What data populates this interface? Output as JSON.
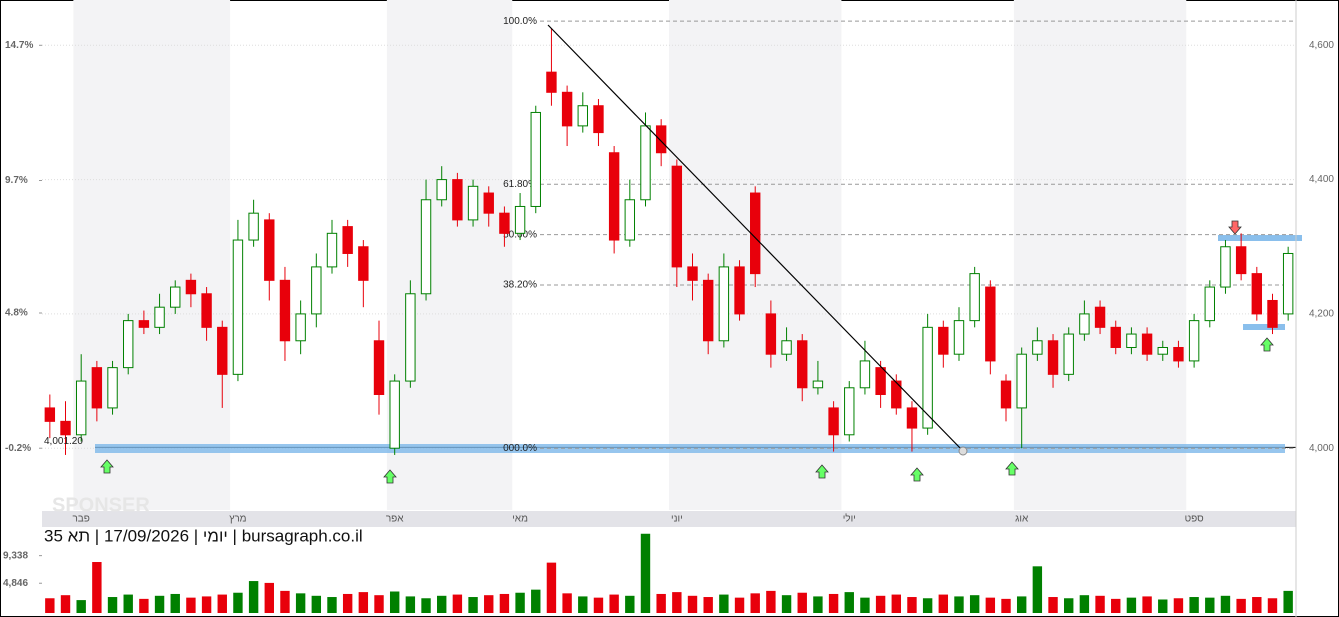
{
  "chart_data": {
    "type": "candlestick",
    "title": "יומי | 17/09/2026 | תא 35 | bursagraph.co.il",
    "watermark": "SPONSER",
    "up_color": "#008000",
    "down_color": "#e8000b",
    "categories": [
      null,
      null,
      "פבר",
      null,
      null,
      null,
      null,
      null,
      null,
      null,
      null,
      null,
      "מרץ",
      null,
      null,
      null,
      null,
      null,
      null,
      null,
      null,
      null,
      "אפר",
      null,
      null,
      null,
      null,
      null,
      null,
      null,
      "מאי",
      null,
      null,
      null,
      null,
      null,
      null,
      null,
      null,
      null,
      "יוני",
      null,
      null,
      null,
      null,
      null,
      null,
      null,
      null,
      null,
      null,
      "יולי",
      null,
      null,
      null,
      null,
      null,
      null,
      null,
      null,
      null,
      null,
      "אוג",
      null,
      null,
      null,
      null,
      null,
      null,
      null,
      null,
      null,
      null,
      "ספט",
      null,
      null,
      null,
      null,
      null,
      null
    ],
    "ohlc": [
      [
        4060,
        4080,
        4015,
        4040
      ],
      [
        4040,
        4070,
        3990,
        4020
      ],
      [
        4020,
        4140,
        4010,
        4100
      ],
      [
        4120,
        4130,
        4040,
        4060
      ],
      [
        4060,
        4130,
        4050,
        4120
      ],
      [
        4120,
        4200,
        4110,
        4190
      ],
      [
        4190,
        4205,
        4170,
        4180
      ],
      [
        4180,
        4230,
        4170,
        4210
      ],
      [
        4210,
        4250,
        4200,
        4240
      ],
      [
        4250,
        4260,
        4210,
        4230
      ],
      [
        4230,
        4240,
        4160,
        4180
      ],
      [
        4180,
        4190,
        4060,
        4110
      ],
      [
        4110,
        4340,
        4100,
        4310
      ],
      [
        4310,
        4370,
        4300,
        4350
      ],
      [
        4340,
        4350,
        4220,
        4250
      ],
      [
        4250,
        4270,
        4130,
        4160
      ],
      [
        4160,
        4220,
        4140,
        4200
      ],
      [
        4200,
        4290,
        4180,
        4270
      ],
      [
        4270,
        4340,
        4260,
        4320
      ],
      [
        4330,
        4340,
        4270,
        4290
      ],
      [
        4300,
        4310,
        4210,
        4250
      ],
      [
        4160,
        4190,
        4050,
        4080
      ],
      [
        4000,
        4110,
        3990,
        4100
      ],
      [
        4100,
        4250,
        4090,
        4230
      ],
      [
        4230,
        4400,
        4220,
        4370
      ],
      [
        4370,
        4420,
        4360,
        4400
      ],
      [
        4400,
        4410,
        4330,
        4340
      ],
      [
        4340,
        4400,
        4330,
        4390
      ],
      [
        4380,
        4390,
        4330,
        4350
      ],
      [
        4350,
        4360,
        4300,
        4320
      ],
      [
        4320,
        4380,
        4310,
        4360
      ],
      [
        4360,
        4510,
        4350,
        4500
      ],
      [
        4560,
        4625,
        4510,
        4530
      ],
      [
        4530,
        4540,
        4450,
        4480
      ],
      [
        4480,
        4530,
        4470,
        4510
      ],
      [
        4510,
        4520,
        4450,
        4470
      ],
      [
        4440,
        4450,
        4290,
        4310
      ],
      [
        4310,
        4400,
        4300,
        4370
      ],
      [
        4370,
        4500,
        4360,
        4480
      ],
      [
        4480,
        4490,
        4420,
        4440
      ],
      [
        4420,
        4430,
        4240,
        4270
      ],
      [
        4270,
        4290,
        4220,
        4250
      ],
      [
        4250,
        4260,
        4140,
        4160
      ],
      [
        4160,
        4290,
        4150,
        4270
      ],
      [
        4270,
        4280,
        4190,
        4200
      ],
      [
        4380,
        4390,
        4240,
        4260
      ],
      [
        4200,
        4220,
        4120,
        4140
      ],
      [
        4140,
        4180,
        4130,
        4160
      ],
      [
        4160,
        4170,
        4070,
        4090
      ],
      [
        4090,
        4130,
        4080,
        4100
      ],
      [
        4060,
        4070,
        3995,
        4020
      ],
      [
        4020,
        4100,
        4010,
        4090
      ],
      [
        4090,
        4160,
        4080,
        4130
      ],
      [
        4120,
        4130,
        4060,
        4080
      ],
      [
        4100,
        4110,
        4050,
        4060
      ],
      [
        4060,
        4070,
        3995,
        4030
      ],
      [
        4030,
        4200,
        4020,
        4180
      ],
      [
        4180,
        4190,
        4120,
        4140
      ],
      [
        4140,
        4210,
        4130,
        4190
      ],
      [
        4190,
        4270,
        4180,
        4260
      ],
      [
        4240,
        4250,
        4110,
        4130
      ],
      [
        4100,
        4110,
        4040,
        4060
      ],
      [
        4060,
        4150,
        4000,
        4140
      ],
      [
        4140,
        4180,
        4130,
        4160
      ],
      [
        4160,
        4170,
        4090,
        4110
      ],
      [
        4110,
        4180,
        4100,
        4170
      ],
      [
        4170,
        4220,
        4160,
        4200
      ],
      [
        4210,
        4220,
        4170,
        4180
      ],
      [
        4180,
        4190,
        4140,
        4150
      ],
      [
        4150,
        4180,
        4140,
        4170
      ],
      [
        4170,
        4180,
        4130,
        4140
      ],
      [
        4140,
        4160,
        4130,
        4150
      ],
      [
        4150,
        4160,
        4120,
        4130
      ],
      [
        4130,
        4200,
        4120,
        4190
      ],
      [
        4190,
        4250,
        4180,
        4240
      ],
      [
        4240,
        4310,
        4230,
        4300
      ],
      [
        4300,
        4320,
        4250,
        4260
      ],
      [
        4260,
        4270,
        4190,
        4200
      ],
      [
        4220,
        4230,
        4170,
        4180
      ],
      [
        4200,
        4300,
        4190,
        4290
      ]
    ],
    "volumes": [
      2400,
      2900,
      2100,
      8300,
      2600,
      3000,
      2300,
      2800,
      3100,
      2500,
      2700,
      3000,
      3300,
      5200,
      4900,
      3600,
      3200,
      2800,
      2600,
      3100,
      3400,
      2900,
      3500,
      2700,
      2400,
      2800,
      3000,
      2600,
      2900,
      3100,
      3300,
      3800,
      8200,
      3200,
      2700,
      2500,
      3000,
      2800,
      12900,
      3100,
      3400,
      2800,
      2600,
      3000,
      2500,
      3200,
      3600,
      2900,
      3300,
      2700,
      3100,
      3400,
      2500,
      2800,
      3000,
      2600,
      2400,
      3000,
      2700,
      2900,
      2500,
      2300,
      2700,
      7600,
      2600,
      2400,
      2900,
      2800,
      2300,
      2500,
      2700,
      2200,
      2400,
      2600,
      2500,
      2800,
      2300,
      2600,
      2400,
      3600
    ],
    "ylim": [
      3908,
      4660
    ],
    "yticks": [
      {
        "value": 4000,
        "label": "4,000"
      },
      {
        "value": 4200,
        "label": "4,200"
      },
      {
        "value": 4400,
        "label": "4,400"
      },
      {
        "value": 4600,
        "label": "4,600"
      }
    ],
    "y2lim": [
      -2.485,
      16.19
    ],
    "y2ticks": [
      {
        "value": -0.2,
        "label": "-0.2%"
      },
      {
        "value": 4.8,
        "label": "4.8%"
      },
      {
        "value": 9.7,
        "label": "9.7%"
      },
      {
        "value": 14.7,
        "label": "14.7%"
      }
    ],
    "vlim": [
      0,
      14000
    ],
    "vticks": [
      {
        "value": 4846,
        "label": "4,846"
      },
      {
        "value": 9338,
        "label": "9,338"
      }
    ],
    "base": {
      "value": 4001.2,
      "label": "4,001.20"
    },
    "fibonacci": [
      {
        "value": 4636,
        "label": "100.0%"
      },
      {
        "value": 4393,
        "label": "61.80%"
      },
      {
        "value": 4318,
        "label": "50.00%"
      },
      {
        "value": 4243,
        "label": "38.20%"
      },
      {
        "value": 4000,
        "label": "000.0%"
      }
    ],
    "grid": true
  }
}
